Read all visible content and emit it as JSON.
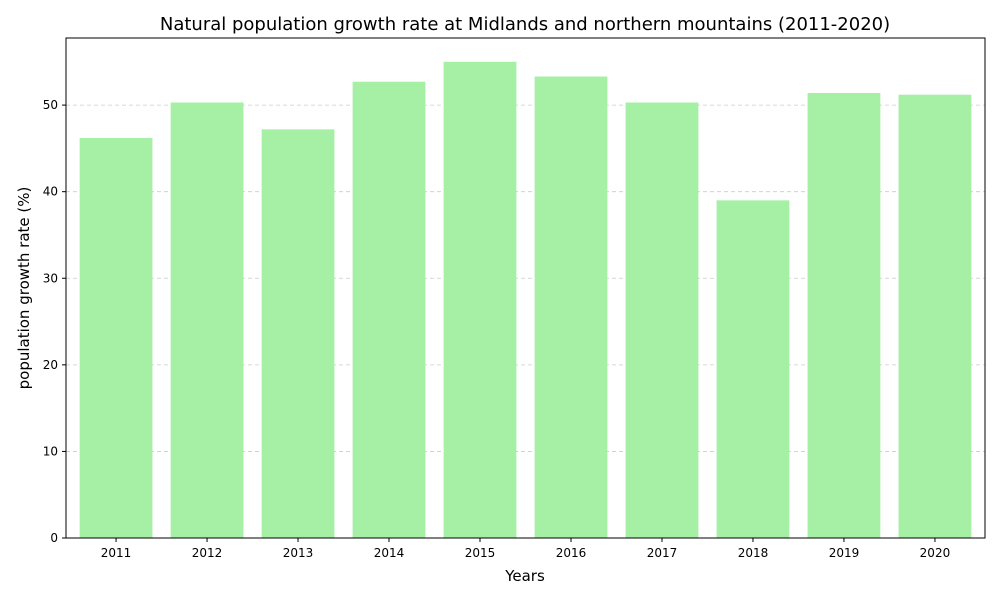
{
  "chart_data": {
    "type": "bar",
    "title": "Natural population growth rate at Midlands and northern mountains (2011-2020)",
    "xlabel": "Years",
    "ylabel": "population growth rate (%)",
    "categories": [
      "2011",
      "2012",
      "2013",
      "2014",
      "2015",
      "2016",
      "2017",
      "2018",
      "2019",
      "2020"
    ],
    "values": [
      46.2,
      50.3,
      47.2,
      52.7,
      55.0,
      53.3,
      50.3,
      39.0,
      51.4,
      51.2
    ],
    "ylim": [
      0,
      57.75
    ],
    "yticks": [
      0,
      10,
      20,
      30,
      40,
      50
    ],
    "grid": "y-dashed",
    "legend": "none",
    "bar_color": "#a6f0a6",
    "grid_color": "#cccccc",
    "axis_color": "#000000"
  }
}
